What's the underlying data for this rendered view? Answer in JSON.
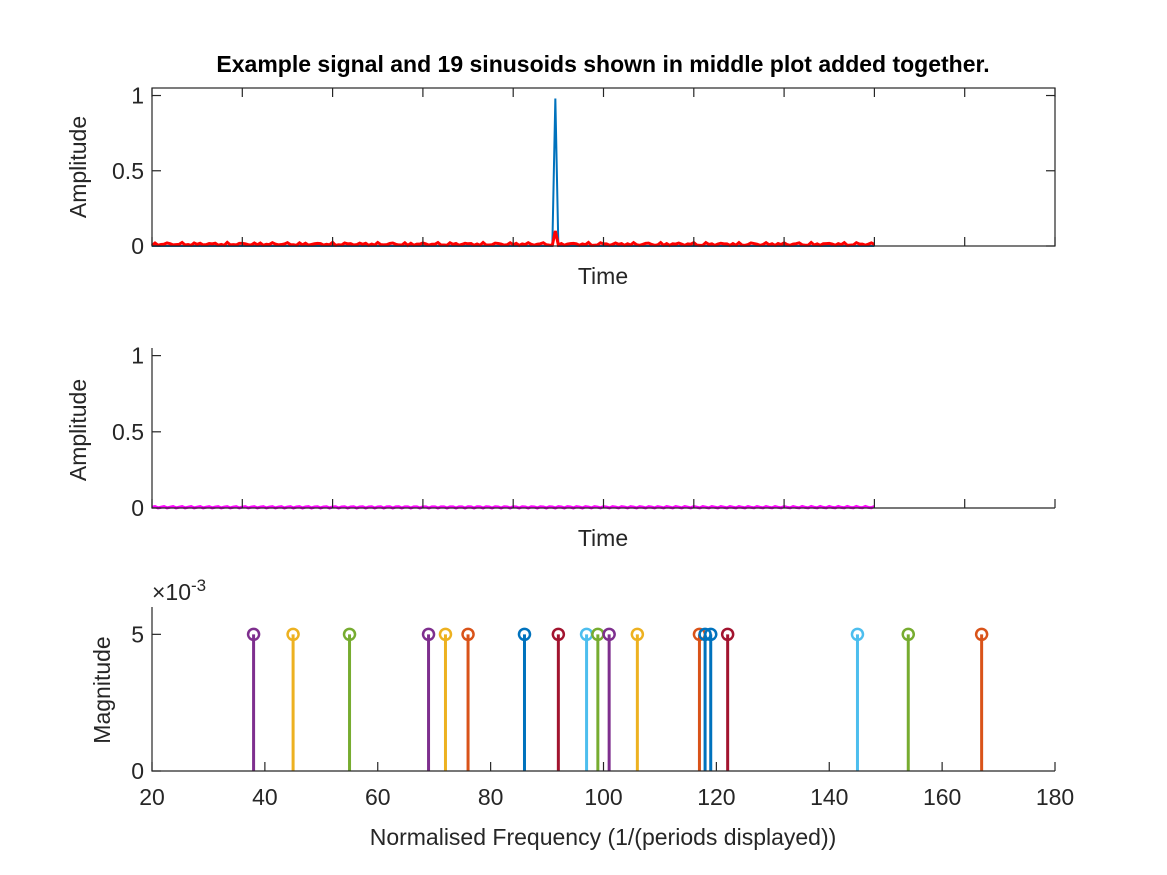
{
  "figure_title": "Example signal and 19 sinusoids shown in middle plot added together.",
  "colors": {
    "axis": "#262626",
    "signal": "#0072BD",
    "reconstruction": "#FF0000",
    "sinusoids": "#FF00FF",
    "stem_palette": [
      "#7E2F8E",
      "#EDB120",
      "#77AC30",
      "#D95319",
      "#0072BD",
      "#A2142F",
      "#4DBEEE"
    ]
  },
  "chart_data": [
    {
      "type": "line",
      "name": "top-plot",
      "title": "Example signal and 19 sinusoids shown in middle plot added together.",
      "xlabel": "Time",
      "ylabel": "Amplitude",
      "ylim": [
        0,
        1.05
      ],
      "xlim": [
        0,
        300
      ],
      "yticks": [
        0,
        0.5,
        1
      ],
      "ytick_labels": [
        "0",
        "0.5",
        "1"
      ],
      "grid": false,
      "series": [
        {
          "name": "signal",
          "description": "single impulse",
          "impulse_x": 134,
          "impulse_value": 0.98
        },
        {
          "name": "sum of sinusoids",
          "peak_x": 134,
          "peak_value": 0.1,
          "ripple_amplitude": 0.02
        }
      ]
    },
    {
      "type": "line",
      "name": "middle-plot",
      "xlabel": "Time",
      "ylabel": "Amplitude",
      "ylim": [
        0,
        1.05
      ],
      "xlim": [
        0,
        300
      ],
      "yticks": [
        0,
        0.5,
        1
      ],
      "ytick_labels": [
        "0",
        "0.5",
        "1"
      ],
      "grid": false,
      "series": [
        {
          "name": "19 sinusoids",
          "amplitude": 0.005
        }
      ]
    },
    {
      "type": "stem",
      "name": "bottom-plot",
      "xlabel": "Normalised Frequency (1/(periods displayed))",
      "ylabel": "Magnitude",
      "exponent_label": "×10",
      "exponent_power": "-3",
      "xlim": [
        20,
        180
      ],
      "ylim": [
        0,
        6
      ],
      "xticks": [
        20,
        40,
        60,
        80,
        100,
        120,
        140,
        160,
        180
      ],
      "xtick_labels": [
        "20",
        "40",
        "60",
        "80",
        "100",
        "120",
        "140",
        "160",
        "180"
      ],
      "yticks": [
        0,
        5
      ],
      "ytick_labels": [
        "0",
        "5"
      ],
      "grid": false,
      "stems": [
        {
          "x": 38,
          "y": 5,
          "color": "#7E2F8E"
        },
        {
          "x": 45,
          "y": 5,
          "color": "#EDB120"
        },
        {
          "x": 55,
          "y": 5,
          "color": "#77AC30"
        },
        {
          "x": 69,
          "y": 5,
          "color": "#7E2F8E"
        },
        {
          "x": 72,
          "y": 5,
          "color": "#EDB120"
        },
        {
          "x": 76,
          "y": 5,
          "color": "#D95319"
        },
        {
          "x": 86,
          "y": 5,
          "color": "#0072BD"
        },
        {
          "x": 92,
          "y": 5,
          "color": "#A2142F"
        },
        {
          "x": 97,
          "y": 5,
          "color": "#4DBEEE"
        },
        {
          "x": 99,
          "y": 5,
          "color": "#77AC30"
        },
        {
          "x": 101,
          "y": 5,
          "color": "#7E2F8E"
        },
        {
          "x": 106,
          "y": 5,
          "color": "#EDB120"
        },
        {
          "x": 117,
          "y": 5,
          "color": "#D95319"
        },
        {
          "x": 118,
          "y": 5,
          "color": "#0072BD"
        },
        {
          "x": 119,
          "y": 5,
          "color": "#0072BD"
        },
        {
          "x": 122,
          "y": 5,
          "color": "#A2142F"
        },
        {
          "x": 145,
          "y": 5,
          "color": "#4DBEEE"
        },
        {
          "x": 154,
          "y": 5,
          "color": "#77AC30"
        },
        {
          "x": 167,
          "y": 5,
          "color": "#D95319"
        }
      ]
    }
  ]
}
